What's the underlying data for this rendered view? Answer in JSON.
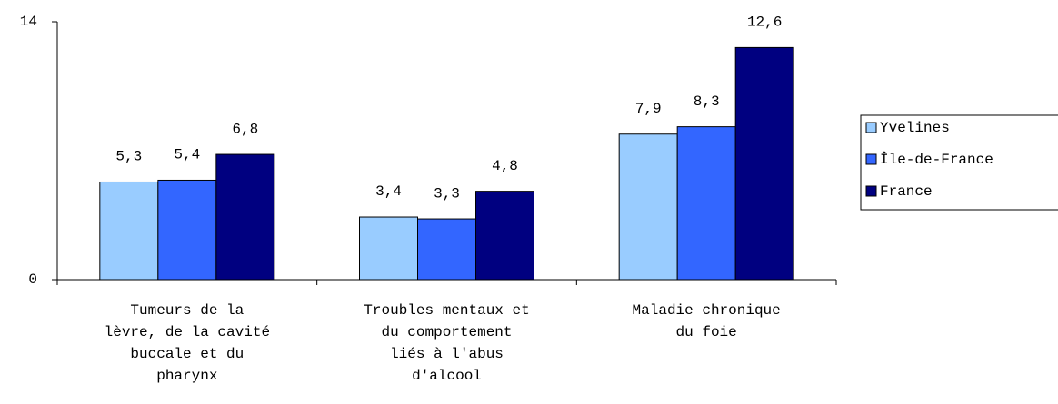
{
  "chart_data": {
    "type": "bar",
    "categories": [
      "Tumeurs de la lèvre, de la cavité buccale et du pharynx",
      "Troubles mentaux et du comportement liés à l'abus d'alcool",
      "Maladie chronique du foie"
    ],
    "series": [
      {
        "name": "Yvelines",
        "color": "#99ccff",
        "values": [
          5.3,
          3.4,
          7.9
        ],
        "value_labels": [
          "5,3",
          "3,4",
          "7,9"
        ]
      },
      {
        "name": "Île-de-France",
        "color": "#3366ff",
        "values": [
          5.4,
          3.3,
          8.3
        ],
        "value_labels": [
          "5,4",
          "3,3",
          "8,3"
        ]
      },
      {
        "name": "France",
        "color": "#000080",
        "values": [
          6.8,
          4.8,
          12.6
        ],
        "value_labels": [
          "6,8",
          "4,8",
          "12,6"
        ]
      }
    ],
    "ylim": [
      0,
      14
    ],
    "yticks": [
      0,
      14
    ],
    "legend": "right"
  }
}
